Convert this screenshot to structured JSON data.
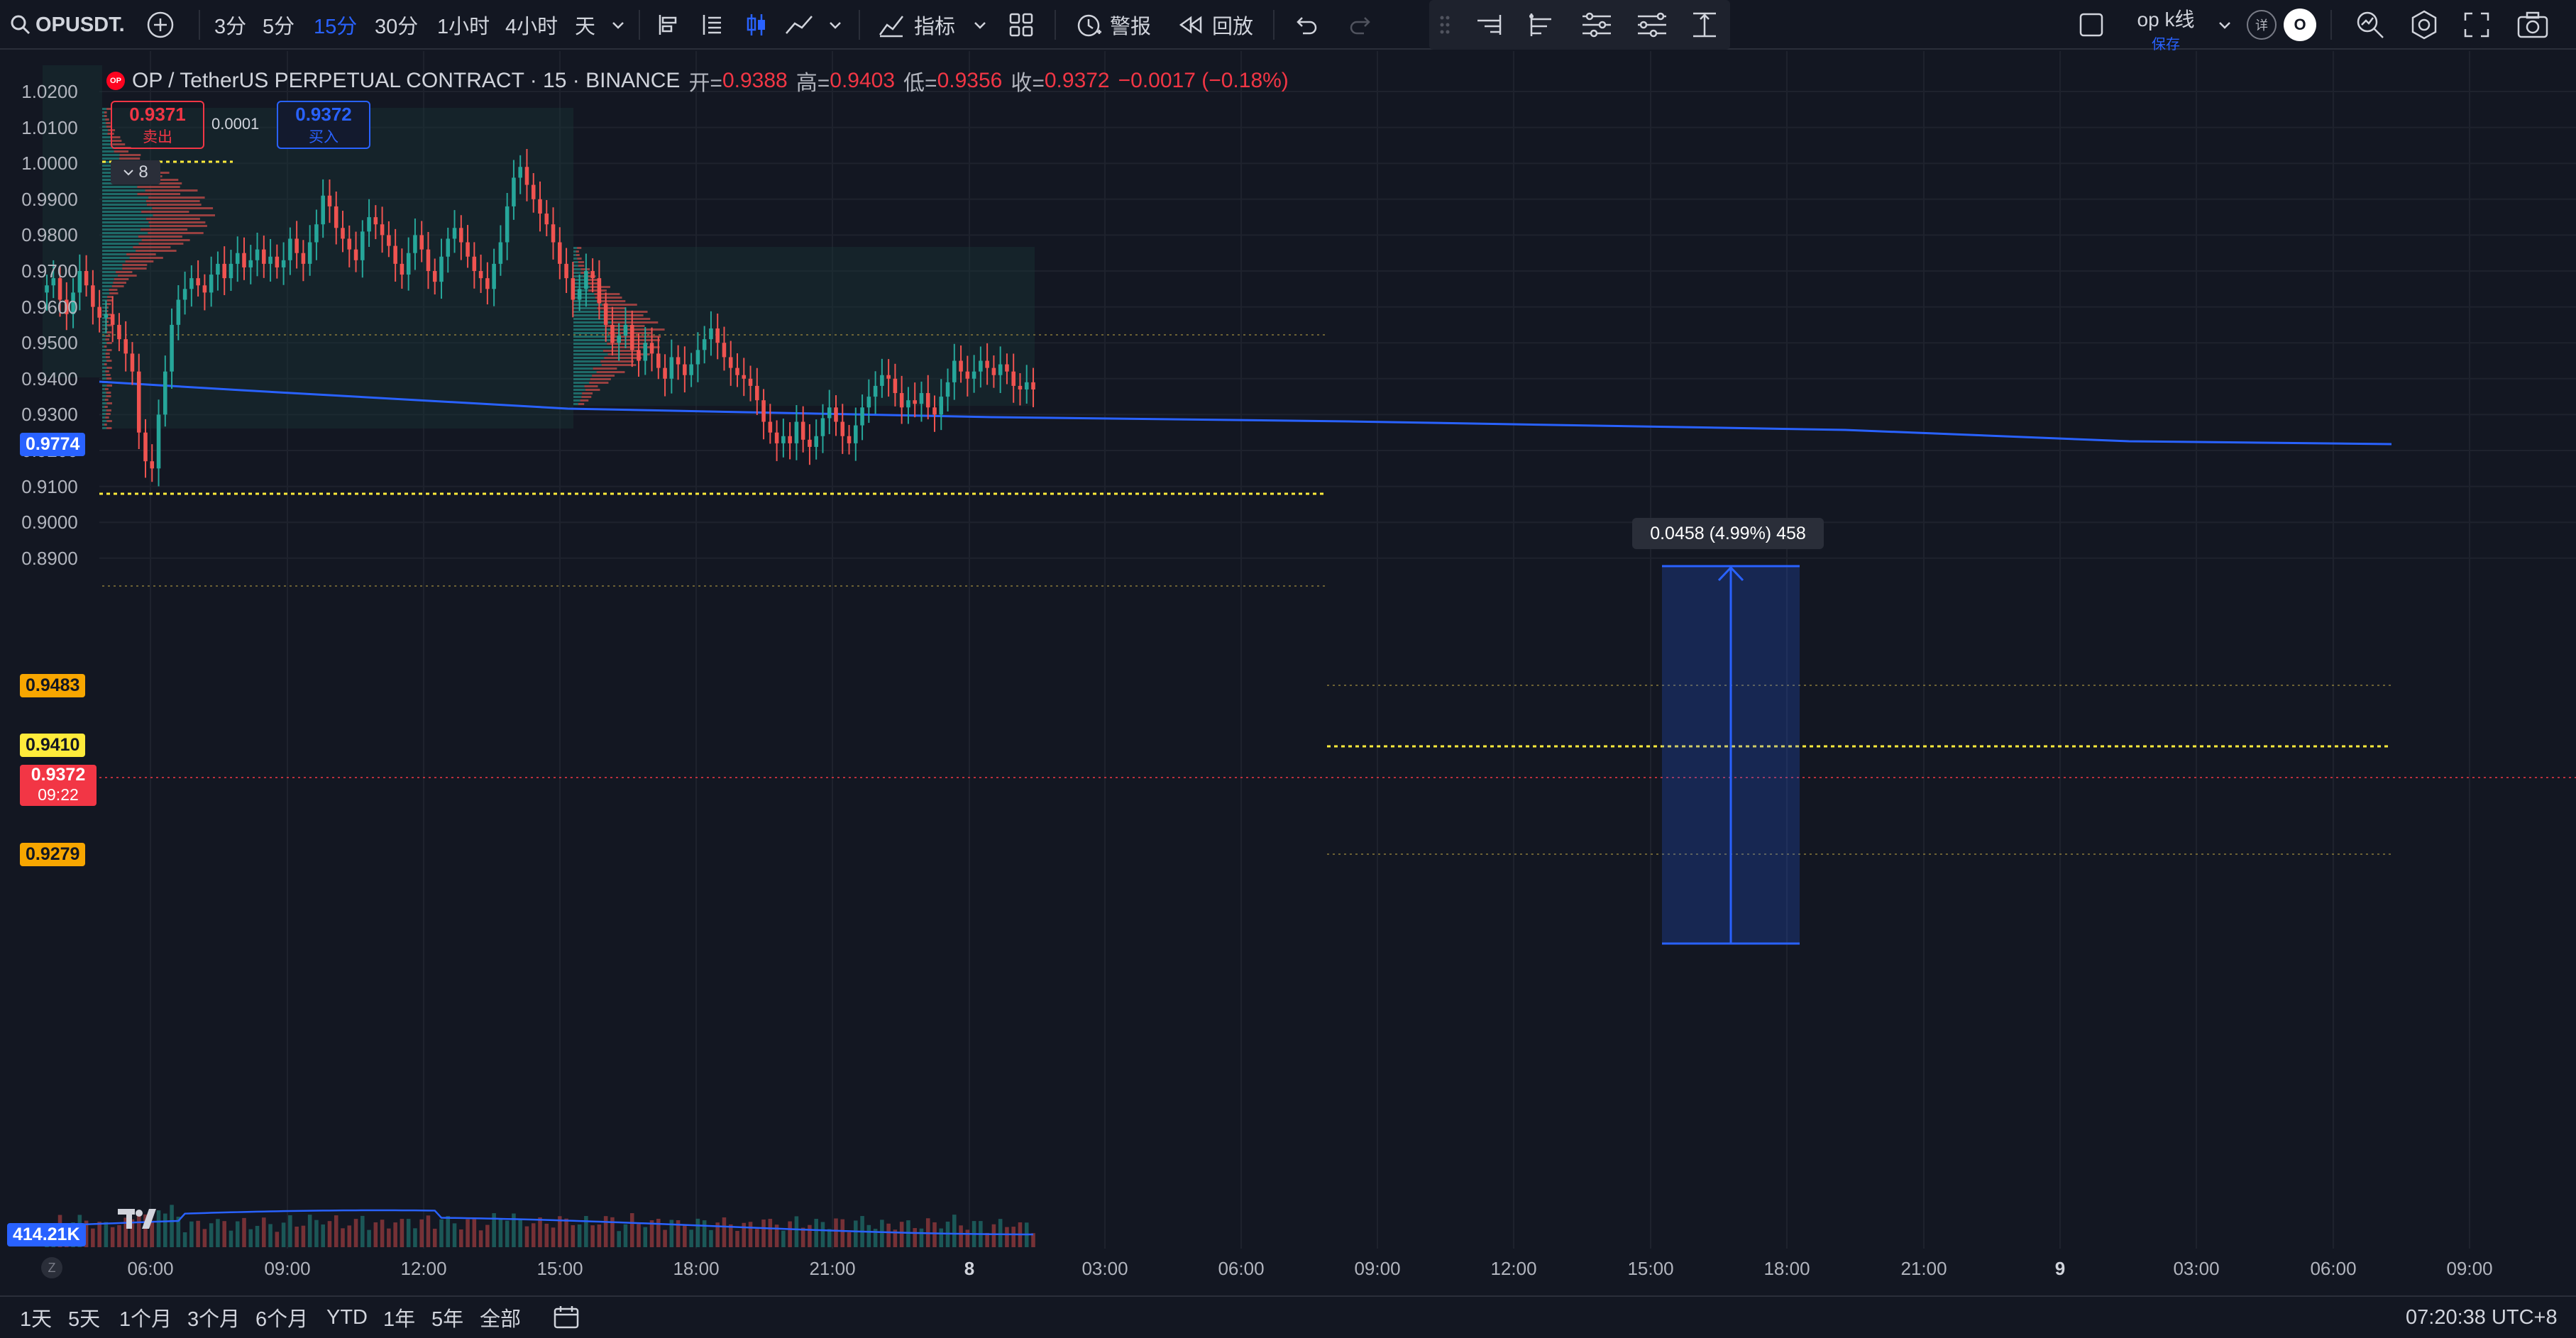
{
  "toolbar": {
    "symbol": "OPUSDT.",
    "intervals": [
      "3分",
      "5分",
      "15分",
      "30分",
      "1小时",
      "4小时",
      "天"
    ],
    "active_interval": "15分",
    "indicators_label": "指标",
    "alert_label": "警报",
    "replay_label": "回放",
    "layout_name": "op k线",
    "layout_sub": "保存",
    "badge_1": "详",
    "badge_2": "O"
  },
  "legend": {
    "title": "OP / TetherUS PERPETUAL CONTRACT · 15 · BINANCE",
    "open_label": "开=",
    "open": "0.9388",
    "high_label": "高=",
    "high": "0.9403",
    "low_label": "低=",
    "low": "0.9356",
    "close_label": "收=",
    "close": "0.9372",
    "change": "−0.0017 (−0.18%)"
  },
  "trade": {
    "sell_price": "0.9371",
    "sell_label": "卖出",
    "spread": "0.0001",
    "buy_price": "0.9372",
    "buy_label": "买入"
  },
  "indicator_collapse": "8",
  "measure_label": "0.0458 (4.99%) 458",
  "yaxis_ticks": [
    "1.0200",
    "1.0100",
    "1.0000",
    "0.9900",
    "0.9800",
    "0.9700",
    "0.9600",
    "0.9500",
    "0.9400",
    "0.9300",
    "0.9200",
    "0.9100",
    "0.9000",
    "0.8900"
  ],
  "price_tags": {
    "ma": "0.9774",
    "orange_top": "0.9483",
    "yellow": "0.9410",
    "current": "0.9372",
    "countdown": "09:22",
    "orange_bottom": "0.9279",
    "volume": "414.21K"
  },
  "xaxis_ticks": [
    "06:00",
    "09:00",
    "12:00",
    "15:00",
    "18:00",
    "21:00",
    "8",
    "03:00",
    "06:00",
    "09:00",
    "12:00",
    "15:00",
    "18:00",
    "21:00",
    "9",
    "03:00",
    "06:00",
    "09:00"
  ],
  "ranges": [
    "1天",
    "5天",
    "1个月",
    "3个月",
    "6个月",
    "YTD",
    "1年",
    "5年",
    "全部"
  ],
  "clock": "07:20:38 UTC+8",
  "colors": {
    "background": "#131722",
    "up": "#26a69a",
    "down": "#ef5350",
    "ma_line": "#2962ff",
    "poc": "#ffeb3b",
    "accent": "#2962ff"
  },
  "chart_data": {
    "type": "candlestick",
    "symbol": "OP / TetherUS PERPETUAL CONTRACT",
    "interval": "15",
    "exchange": "BINANCE",
    "ylim": [
      0.885,
      1.025
    ],
    "close_series": [
      0.966,
      0.968,
      0.962,
      0.958,
      0.964,
      0.97,
      0.966,
      0.96,
      0.957,
      0.958,
      0.955,
      0.951,
      0.947,
      0.942,
      0.925,
      0.917,
      0.915,
      0.93,
      0.942,
      0.955,
      0.962,
      0.965,
      0.968,
      0.966,
      0.964,
      0.969,
      0.972,
      0.968,
      0.972,
      0.975,
      0.971,
      0.973,
      0.976,
      0.972,
      0.974,
      0.971,
      0.973,
      0.979,
      0.975,
      0.972,
      0.978,
      0.983,
      0.991,
      0.988,
      0.982,
      0.979,
      0.976,
      0.973,
      0.981,
      0.985,
      0.983,
      0.98,
      0.977,
      0.972,
      0.969,
      0.975,
      0.98,
      0.976,
      0.97,
      0.967,
      0.974,
      0.979,
      0.982,
      0.978,
      0.974,
      0.97,
      0.968,
      0.965,
      0.972,
      0.978,
      0.988,
      0.996,
      0.999,
      0.994,
      0.99,
      0.986,
      0.983,
      0.978,
      0.972,
      0.968,
      0.962,
      0.965,
      0.97,
      0.968,
      0.961,
      0.955,
      0.95,
      0.952,
      0.955,
      0.948,
      0.945,
      0.95,
      0.947,
      0.943,
      0.94,
      0.946,
      0.944,
      0.941,
      0.944,
      0.948,
      0.951,
      0.954,
      0.95,
      0.946,
      0.943,
      0.941,
      0.94,
      0.938,
      0.934,
      0.928,
      0.925,
      0.922,
      0.924,
      0.922,
      0.928,
      0.923,
      0.921,
      0.924,
      0.929,
      0.932,
      0.928,
      0.924,
      0.922,
      0.927,
      0.932,
      0.935,
      0.938,
      0.941,
      0.94,
      0.936,
      0.932,
      0.934,
      0.933,
      0.936,
      0.932,
      0.93,
      0.935,
      0.939,
      0.945,
      0.942,
      0.94,
      0.942,
      0.945,
      0.943,
      0.941,
      0.944,
      0.942,
      0.938,
      0.937,
      0.939,
      0.937
    ]
  }
}
